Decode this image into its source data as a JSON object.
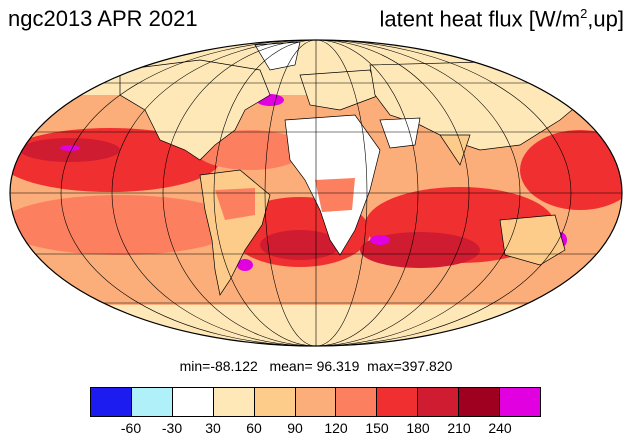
{
  "title_left": "ngc2013 APR 2021",
  "title_right": {
    "prefix": "latent heat flux [W/m",
    "sup": "2",
    "suffix": ",up]"
  },
  "stats": {
    "min_label": "min=",
    "min": "-88.122",
    "mean_label": "mean=",
    "mean": "96.319",
    "max_label": "max=",
    "max": "397.820"
  },
  "colorbar": {
    "colors": [
      "#1c1cf0",
      "#b0f0f8",
      "#ffffff",
      "#fee8b8",
      "#fdcc8a",
      "#fcae7a",
      "#fc8060",
      "#f03030",
      "#d01c30",
      "#a00020",
      "#e000e0"
    ],
    "tick_labels": [
      "-60",
      "-30",
      "30",
      "60",
      "90",
      "120",
      "150",
      "180",
      "210",
      "240"
    ]
  },
  "map": {
    "projection": "Mollweide",
    "ocean_color": "#fcae7a",
    "land_color": "#fee8b8",
    "desert_color": "#ffffff",
    "tropical_color": "#f03030",
    "high_color": "#d01c30",
    "extreme_color": "#e000e0"
  }
}
